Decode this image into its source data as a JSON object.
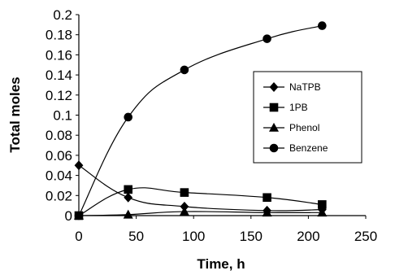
{
  "chart_data": {
    "type": "scatter",
    "title": "",
    "xlabel": "Time, h",
    "ylabel": "Total moles",
    "xlim": [
      0,
      250
    ],
    "ylim": [
      0,
      0.2
    ],
    "xticks": [
      "0",
      "50",
      "100",
      "150",
      "200",
      "250"
    ],
    "yticks": [
      "0",
      "0.02",
      "0.04",
      "0.06",
      "0.08",
      "0.1",
      "0.12",
      "0.14",
      "0.16",
      "0.18",
      "0.2"
    ],
    "grid": false,
    "legend_position": "right",
    "series": [
      {
        "name": "NaTPB",
        "marker": "diamond",
        "x": [
          0,
          43,
          92,
          164,
          212
        ],
        "y": [
          0.05,
          0.018,
          0.009,
          0.005,
          0.006
        ]
      },
      {
        "name": "1PB",
        "marker": "square",
        "x": [
          0,
          43,
          92,
          164,
          212
        ],
        "y": [
          0.0,
          0.026,
          0.023,
          0.018,
          0.011
        ]
      },
      {
        "name": "Phenol",
        "marker": "triangle",
        "x": [
          0,
          43,
          92,
          164,
          212
        ],
        "y": [
          0.0,
          0.001,
          0.004,
          0.003,
          0.003
        ]
      },
      {
        "name": "Benzene",
        "marker": "circle",
        "x": [
          0,
          43,
          92,
          164,
          212
        ],
        "y": [
          0.0,
          0.098,
          0.145,
          0.176,
          0.189
        ]
      }
    ]
  }
}
